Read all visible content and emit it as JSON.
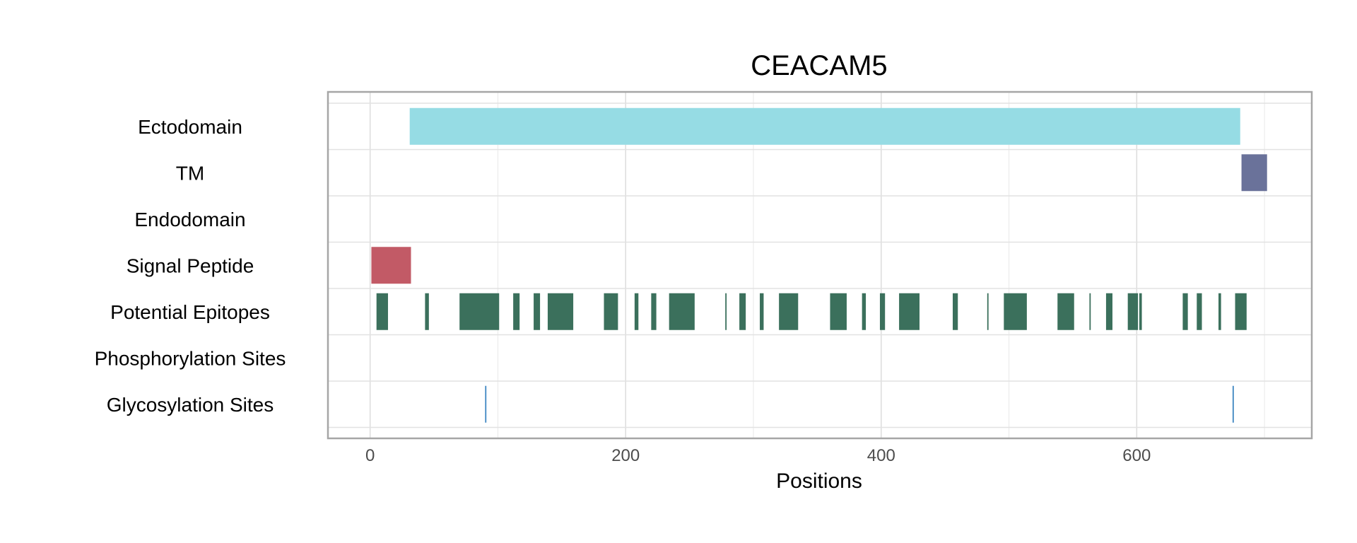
{
  "chart_data": {
    "type": "feature-track",
    "title": "CEACAM5",
    "xlabel": "Positions",
    "xlim": [
      -33,
      737
    ],
    "xticks": [
      0,
      200,
      400,
      600
    ],
    "grid": true,
    "tracks": [
      "Ectodomain",
      "TM",
      "Endodomain",
      "Signal Peptide",
      "Potential Epitopes",
      "Phosphorylation Sites",
      "Glycosylation Sites"
    ],
    "colors": {
      "Ectodomain": "#96dce4",
      "TM": "#6a729a",
      "Signal Peptide": "#c25a66",
      "Potential Epitopes": "#3b705c",
      "Glycosylation Sites": "#3e86c2"
    },
    "features": [
      {
        "track": "Ectodomain",
        "start": 31,
        "end": 681
      },
      {
        "track": "TM",
        "start": 682,
        "end": 702
      },
      {
        "track": "Signal Peptide",
        "start": 1,
        "end": 32
      },
      {
        "track": "Potential Epitopes",
        "start": 5,
        "end": 14
      },
      {
        "track": "Potential Epitopes",
        "start": 43,
        "end": 46
      },
      {
        "track": "Potential Epitopes",
        "start": 70,
        "end": 101
      },
      {
        "track": "Potential Epitopes",
        "start": 112,
        "end": 117
      },
      {
        "track": "Potential Epitopes",
        "start": 128,
        "end": 133
      },
      {
        "track": "Potential Epitopes",
        "start": 139,
        "end": 159
      },
      {
        "track": "Potential Epitopes",
        "start": 183,
        "end": 194
      },
      {
        "track": "Potential Epitopes",
        "start": 207,
        "end": 210
      },
      {
        "track": "Potential Epitopes",
        "start": 220,
        "end": 224
      },
      {
        "track": "Potential Epitopes",
        "start": 234,
        "end": 254
      },
      {
        "track": "Potential Epitopes",
        "start": 278,
        "end": 279
      },
      {
        "track": "Potential Epitopes",
        "start": 289,
        "end": 294
      },
      {
        "track": "Potential Epitopes",
        "start": 305,
        "end": 308
      },
      {
        "track": "Potential Epitopes",
        "start": 320,
        "end": 335
      },
      {
        "track": "Potential Epitopes",
        "start": 360,
        "end": 373
      },
      {
        "track": "Potential Epitopes",
        "start": 385,
        "end": 388
      },
      {
        "track": "Potential Epitopes",
        "start": 399,
        "end": 403
      },
      {
        "track": "Potential Epitopes",
        "start": 414,
        "end": 430
      },
      {
        "track": "Potential Epitopes",
        "start": 456,
        "end": 460
      },
      {
        "track": "Potential Epitopes",
        "start": 483,
        "end": 484
      },
      {
        "track": "Potential Epitopes",
        "start": 496,
        "end": 514
      },
      {
        "track": "Potential Epitopes",
        "start": 538,
        "end": 551
      },
      {
        "track": "Potential Epitopes",
        "start": 563,
        "end": 564
      },
      {
        "track": "Potential Epitopes",
        "start": 576,
        "end": 581
      },
      {
        "track": "Potential Epitopes",
        "start": 593,
        "end": 601
      },
      {
        "track": "Potential Epitopes",
        "start": 602,
        "end": 604
      },
      {
        "track": "Potential Epitopes",
        "start": 636,
        "end": 640
      },
      {
        "track": "Potential Epitopes",
        "start": 647,
        "end": 651
      },
      {
        "track": "Potential Epitopes",
        "start": 664,
        "end": 666
      },
      {
        "track": "Potential Epitopes",
        "start": 677,
        "end": 686
      },
      {
        "track": "Glycosylation Sites",
        "start": 90,
        "end": 91
      },
      {
        "track": "Glycosylation Sites",
        "start": 675,
        "end": 676
      }
    ]
  }
}
